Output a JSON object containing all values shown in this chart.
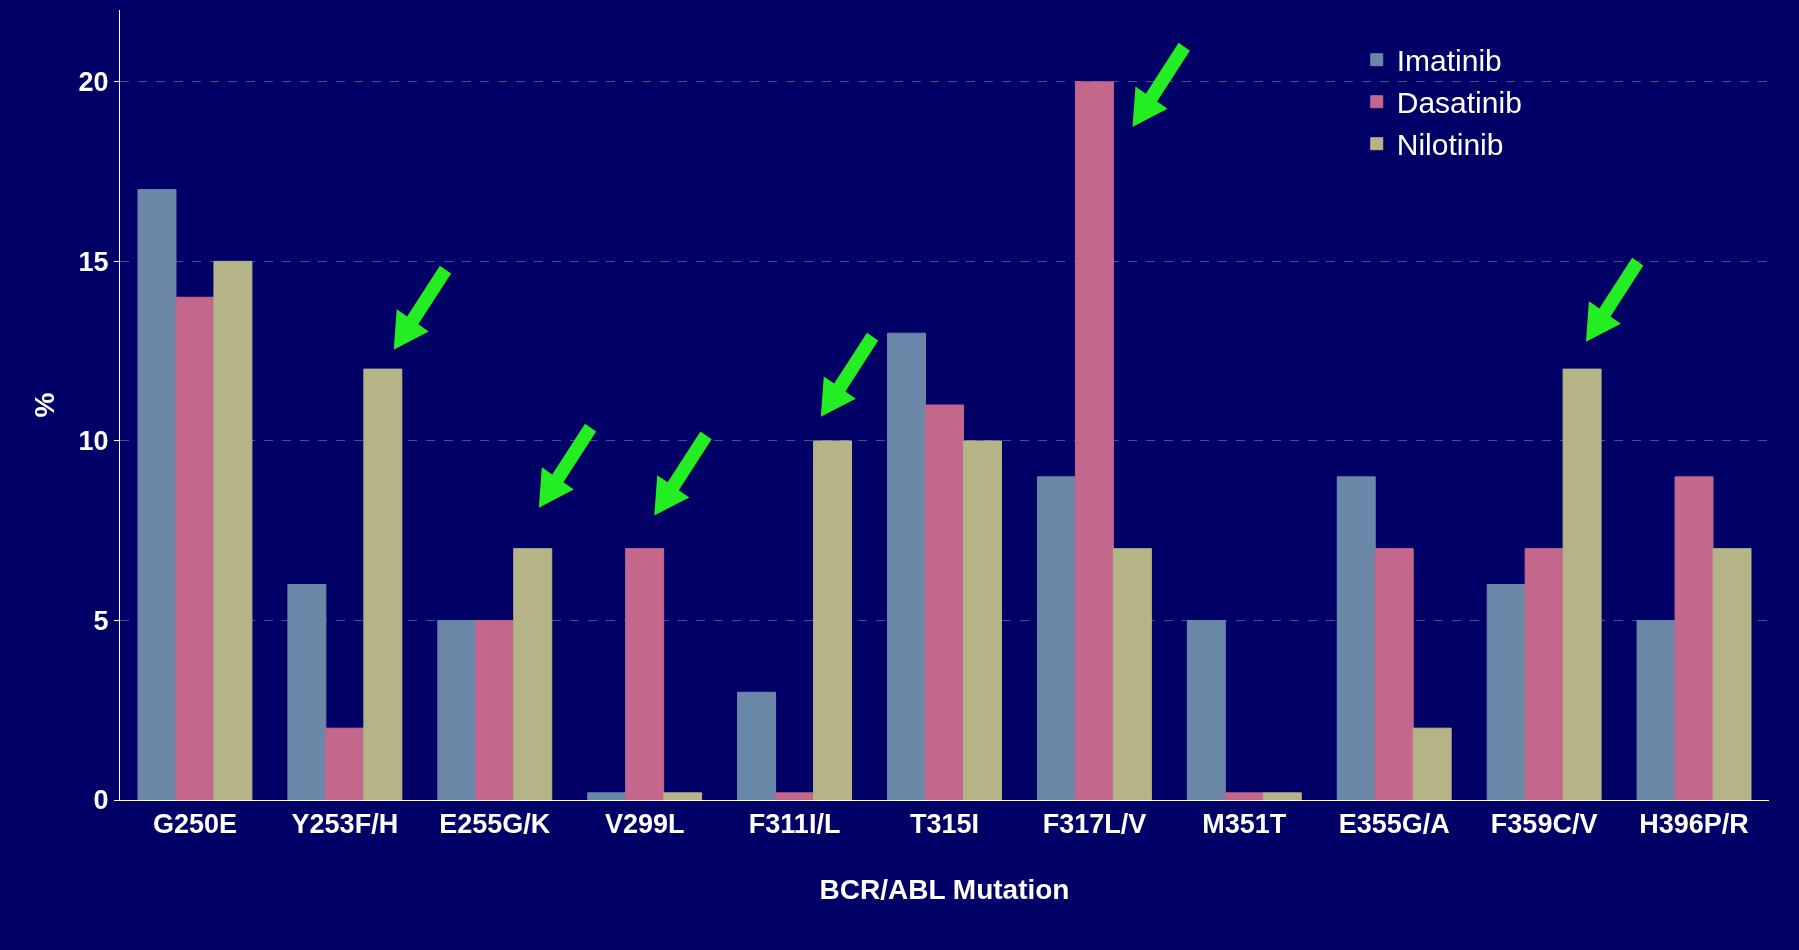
{
  "chart_data": {
    "type": "bar",
    "xlabel": "BCR/ABL Mutation",
    "ylabel": "%",
    "categories": [
      "G250E",
      "Y253F/H",
      "E255G/K",
      "V299L",
      "F311I/L",
      "T315I",
      "F317L/V",
      "M351T",
      "E355G/A",
      "F359C/V",
      "H396P/R"
    ],
    "series": [
      {
        "name": "Imatinib",
        "color": "#6a87a8",
        "values": [
          17,
          6,
          5,
          0.2,
          3,
          13,
          9,
          5,
          9,
          6,
          5
        ]
      },
      {
        "name": "Dasatinib",
        "color": "#c4678c",
        "values": [
          14,
          2,
          5,
          7,
          0.2,
          11,
          20,
          0.2,
          7,
          7,
          9
        ]
      },
      {
        "name": "Nilotinib",
        "color": "#b4b486",
        "values": [
          15,
          12,
          7,
          0.2,
          10,
          10,
          7,
          0.2,
          2,
          12,
          7
        ]
      }
    ],
    "ylim": [
      0,
      22
    ],
    "yticks": [
      0,
      5,
      10,
      15,
      20
    ],
    "grid": "y",
    "legend": "top right"
  }
}
